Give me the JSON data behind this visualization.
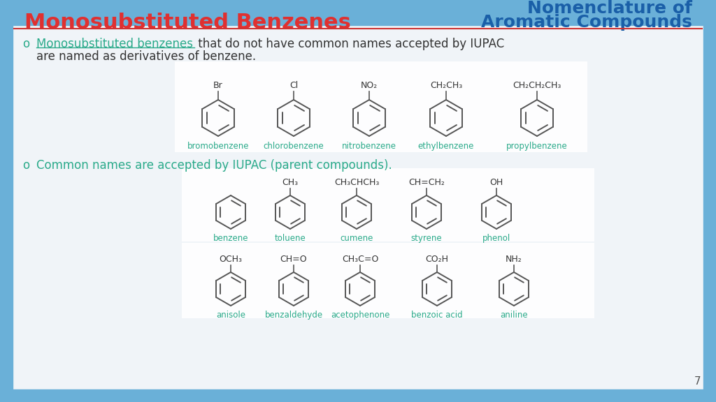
{
  "bg_color": "#dce9f5",
  "title_left": "Monosubstituted Benzenes",
  "title_left_color": "#e03030",
  "title_right_line1": "Nomenclature of",
  "title_right_line2": "Aromatic Compounds",
  "title_right_color": "#1a5fa8",
  "bullet_color": "#2aaa8a",
  "bullet1_text1": "Monosubstituted benzenes",
  "bullet1_text2": " that do not have common names accepted by IUPAC",
  "bullet1_text3": "are named as derivatives of benzene.",
  "bullet2_text": "Common names are accepted by IUPAC (parent compounds).",
  "page_number": "7",
  "row1_names": [
    "bromobenzene",
    "chlorobenzene",
    "nitrobenzene",
    "ethylbenzene",
    "propylbenzene"
  ],
  "row1_labels": [
    "Br",
    "Cl",
    "NO₂",
    "CH₂CH₃",
    "CH₂CH₂CH₃"
  ],
  "row2_names": [
    "benzene",
    "toluene",
    "cumene",
    "styrene",
    "phenol"
  ],
  "row2_labels": [
    "",
    "CH₃",
    "CH₃CHCH₃",
    "CH=CH₂",
    "OH"
  ],
  "row3_names": [
    "anisole",
    "benzaldehyde",
    "acetophenone",
    "benzoic acid",
    "aniline"
  ],
  "row3_labels": [
    "OCH₃",
    "CH=O",
    "CH₃C=O",
    "CO₂H",
    "NH₂"
  ],
  "name_color": "#2aaa8a",
  "ring_color": "#555555",
  "label_color": "#333333",
  "border_color": "#6ab0d8",
  "inner_bg": "#f0f4f8"
}
